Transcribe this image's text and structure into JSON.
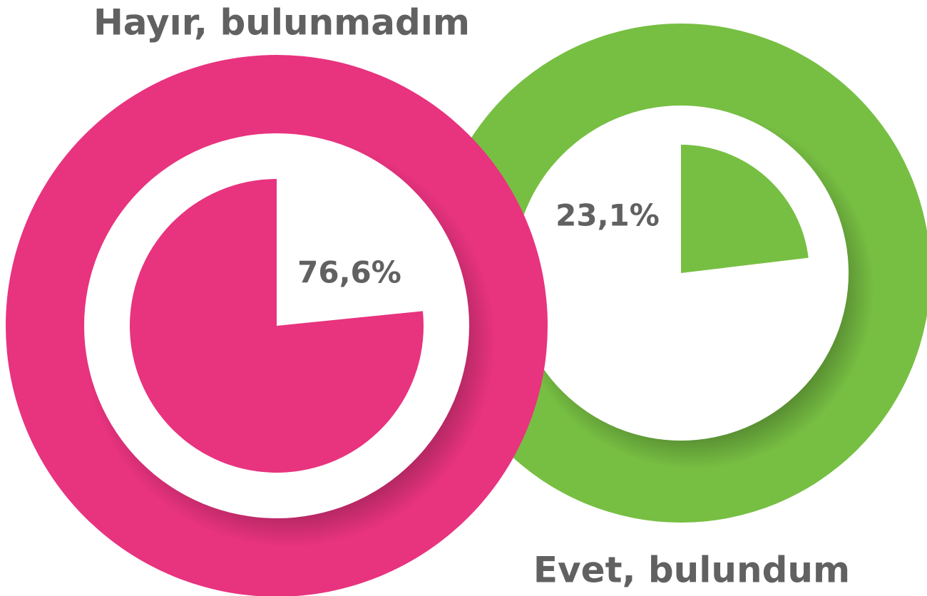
{
  "chart_data": [
    {
      "type": "pie",
      "title": "Hayır, bulunmadım",
      "values": [
        76.6
      ],
      "value_labels": [
        "76,6%"
      ],
      "color": "#e8337f",
      "direction": "counterclockwise"
    },
    {
      "type": "pie",
      "title": "Evet, bulundum",
      "values": [
        23.1
      ],
      "value_labels": [
        "23,1%"
      ],
      "color": "#77bf43",
      "direction": "clockwise"
    }
  ]
}
